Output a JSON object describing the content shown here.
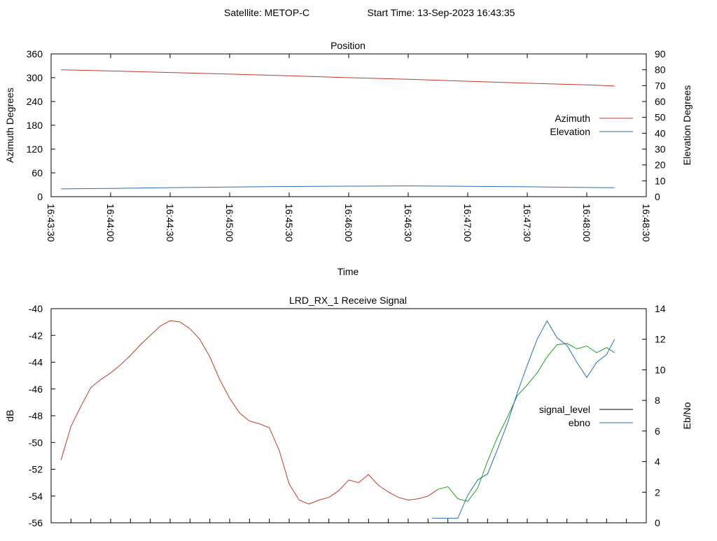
{
  "header": {
    "satellite": "Satellite: METOP-C",
    "start_time": "Start Time: 13-Sep-2023 16:43:35"
  },
  "chart_data": [
    {
      "type": "line",
      "title": "Position",
      "xlabel": "Time",
      "ylabel": "Azimuth Degrees",
      "y2label": "Elevation Degrees",
      "xlim": [
        "16:43:30",
        "16:48:30"
      ],
      "ylim": [
        0,
        360
      ],
      "y2lim": [
        0,
        90
      ],
      "xticks": [
        "16:43:30",
        "16:44:00",
        "16:44:30",
        "16:45:00",
        "16:45:30",
        "16:46:00",
        "16:46:30",
        "16:47:00",
        "16:47:30",
        "16:48:00",
        "16:48:30"
      ],
      "yticks": [
        "0",
        "60",
        "120",
        "180",
        "240",
        "300",
        "360"
      ],
      "y2ticks": [
        "0",
        "10",
        "20",
        "30",
        "40",
        "50",
        "60",
        "70",
        "80",
        "90"
      ],
      "legend_position": "right",
      "series": [
        {
          "name": "Azimuth",
          "axis": "y",
          "color": "#c0392b",
          "x": [
            "16:43:35",
            "16:44:00",
            "16:44:30",
            "16:45:00",
            "16:45:30",
            "16:46:00",
            "16:46:30",
            "16:47:00",
            "16:47:30",
            "16:48:00",
            "16:48:14"
          ],
          "values": [
            320,
            317,
            313,
            309,
            305,
            300,
            296,
            291,
            286,
            282,
            279
          ]
        },
        {
          "name": "Elevation",
          "axis": "y2",
          "color": "#2a6db5",
          "x": [
            "16:43:35",
            "16:44:00",
            "16:44:30",
            "16:45:00",
            "16:45:30",
            "16:46:00",
            "16:46:30",
            "16:47:00",
            "16:47:30",
            "16:48:00",
            "16:48:14"
          ],
          "values": [
            4.9,
            5.2,
            5.7,
            6.1,
            6.4,
            6.6,
            6.8,
            6.5,
            6.2,
            5.8,
            5.6
          ]
        }
      ]
    },
    {
      "type": "line",
      "title": "LRD_RX_1 Receive Signal",
      "ylabel": "dB",
      "y2label": "Eb/No",
      "xlim": [
        "16:43:30",
        "16:48:30"
      ],
      "ylim": [
        -56,
        -40
      ],
      "y2lim": [
        0,
        14
      ],
      "yticks": [
        "-56",
        "-54",
        "-52",
        "-50",
        "-48",
        "-46",
        "-44",
        "-42",
        "-40"
      ],
      "y2ticks": [
        "0",
        "2",
        "4",
        "6",
        "8",
        "10",
        "12",
        "14"
      ],
      "x_minor_ticks": 30,
      "legend_position": "right",
      "series": [
        {
          "name": "signal_level",
          "axis": "y",
          "legend_color": "#000000",
          "segment_colors": {
            "before_ebno_lock": "#c0392b",
            "during_ebno_lock": "#1aa31a"
          },
          "x": [
            "16:43:35",
            "16:43:40",
            "16:43:45",
            "16:43:50",
            "16:43:55",
            "16:44:00",
            "16:44:05",
            "16:44:10",
            "16:44:15",
            "16:44:20",
            "16:44:25",
            "16:44:30",
            "16:44:35",
            "16:44:40",
            "16:44:45",
            "16:44:50",
            "16:44:55",
            "16:45:00",
            "16:45:05",
            "16:45:10",
            "16:45:15",
            "16:45:20",
            "16:45:25",
            "16:45:30",
            "16:45:35",
            "16:45:40",
            "16:45:45",
            "16:45:50",
            "16:45:55",
            "16:46:00",
            "16:46:05",
            "16:46:10",
            "16:46:15",
            "16:46:20",
            "16:46:25",
            "16:46:30",
            "16:46:35",
            "16:46:40",
            "16:46:45",
            "16:46:50",
            "16:46:55",
            "16:47:00",
            "16:47:05",
            "16:47:10",
            "16:47:15",
            "16:47:20",
            "16:47:25",
            "16:47:30",
            "16:47:35",
            "16:47:40",
            "16:47:45",
            "16:47:50",
            "16:47:55",
            "16:48:00",
            "16:48:05",
            "16:48:10",
            "16:48:14"
          ],
          "values": [
            -51.3,
            -48.8,
            -47.3,
            -45.9,
            -45.3,
            -44.8,
            -44.2,
            -43.5,
            -42.7,
            -42.0,
            -41.3,
            -40.9,
            -41.0,
            -41.5,
            -42.3,
            -43.6,
            -45.3,
            -46.7,
            -47.8,
            -48.4,
            -48.6,
            -48.9,
            -50.6,
            -53.1,
            -54.3,
            -54.6,
            -54.3,
            -54.1,
            -53.6,
            -52.8,
            -53.0,
            -52.4,
            -53.2,
            -53.7,
            -54.1,
            -54.3,
            -54.2,
            -54.0,
            -53.5,
            -53.3,
            -54.2,
            -54.4,
            -53.4,
            -51.4,
            -49.6,
            -48.1,
            -46.5,
            -45.7,
            -44.8,
            -43.6,
            -42.7,
            -42.6,
            -43.0,
            -42.8,
            -43.3,
            -42.9,
            -43.3
          ]
        },
        {
          "name": "ebno",
          "axis": "y2",
          "color": "#2a6db5",
          "x": [
            "16:46:42",
            "16:46:50",
            "16:46:55",
            "16:47:00",
            "16:47:05",
            "16:47:10",
            "16:47:15",
            "16:47:20",
            "16:47:25",
            "16:47:30",
            "16:47:35",
            "16:47:40",
            "16:47:45",
            "16:47:50",
            "16:47:55",
            "16:48:00",
            "16:48:05",
            "16:48:10",
            "16:48:14"
          ],
          "values": [
            0.3,
            0.3,
            0.3,
            1.8,
            2.8,
            3.2,
            4.8,
            6.5,
            8.5,
            10.3,
            12.0,
            13.2,
            12.1,
            11.6,
            10.5,
            9.5,
            10.5,
            11.0,
            12.0
          ]
        }
      ]
    }
  ]
}
